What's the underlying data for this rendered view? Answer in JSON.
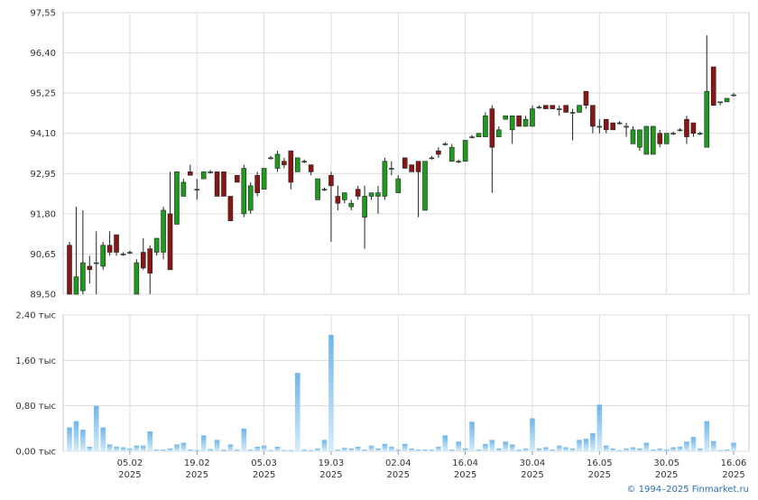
{
  "chart_data": [
    {
      "type": "candlestick",
      "ylim": [
        89.5,
        97.55
      ],
      "yticks": [
        {
          "value": 89.5,
          "label": "89,50"
        },
        {
          "value": 90.65,
          "label": "90,65"
        },
        {
          "value": 91.8,
          "label": "91,80"
        },
        {
          "value": 92.95,
          "label": "92,95"
        },
        {
          "value": 94.1,
          "label": "94,10"
        },
        {
          "value": 95.25,
          "label": "95,25"
        },
        {
          "value": 96.4,
          "label": "96,40"
        },
        {
          "value": 97.55,
          "label": "97,55"
        }
      ],
      "grid": true,
      "up_color": "#1f9a1f",
      "down_color": "#8b1515",
      "open": [
        90.9,
        89.5,
        89.6,
        90.3,
        90.4,
        90.3,
        90.9,
        91.2,
        90.65,
        90.7,
        89.5,
        90.7,
        90.8,
        90.7,
        90.7,
        91.8,
        91.5,
        92.3,
        93.0,
        92.5,
        92.8,
        93.0,
        93.0,
        93.0,
        92.3,
        92.9,
        91.8,
        91.9,
        92.9,
        92.5,
        93.4,
        93.1,
        93.3,
        93.6,
        93.0,
        93.3,
        93.2,
        92.2,
        92.5,
        92.9,
        92.3,
        92.2,
        92.0,
        92.5,
        91.7,
        92.3,
        92.3,
        92.3,
        93.1,
        92.4,
        93.4,
        93.2,
        93.3,
        91.9,
        93.4,
        93.6,
        93.8,
        93.3,
        93.3,
        93.3,
        94.0,
        94.0,
        94.0,
        94.8,
        94.0,
        94.5,
        94.2,
        94.6,
        94.3,
        94.3,
        94.85,
        94.9,
        94.9,
        94.8,
        94.9,
        94.7,
        94.7,
        95.3,
        94.9,
        94.3,
        94.5,
        94.4,
        94.4,
        94.3,
        93.8,
        93.7,
        93.5,
        93.5,
        94.1,
        93.8,
        94.1,
        94.2,
        94.5,
        94.4,
        94.1,
        93.7,
        96.0,
        95.0,
        95.0,
        95.2
      ],
      "high": [
        91.0,
        92.0,
        91.9,
        90.6,
        91.3,
        91.0,
        91.3,
        91.2,
        90.7,
        90.75,
        90.5,
        91.1,
        90.9,
        91.1,
        92.0,
        93.0,
        93.0,
        92.8,
        93.2,
        92.8,
        93.0,
        93.05,
        93.0,
        93.0,
        92.3,
        92.9,
        93.2,
        92.7,
        93.0,
        93.1,
        93.45,
        93.6,
        93.4,
        93.6,
        93.4,
        93.35,
        93.2,
        92.8,
        92.55,
        93.0,
        92.6,
        92.4,
        92.2,
        92.6,
        92.6,
        92.4,
        92.6,
        93.4,
        93.3,
        92.9,
        93.4,
        93.2,
        93.3,
        93.3,
        93.45,
        93.7,
        93.85,
        93.8,
        93.35,
        93.9,
        94.05,
        94.1,
        94.7,
        94.9,
        94.3,
        94.55,
        94.6,
        94.6,
        94.6,
        94.9,
        94.9,
        94.9,
        94.9,
        94.9,
        94.9,
        94.8,
        94.9,
        95.3,
        94.9,
        94.5,
        94.5,
        94.4,
        94.45,
        94.4,
        94.3,
        94.2,
        94.3,
        94.3,
        94.2,
        94.1,
        94.15,
        94.25,
        94.6,
        94.4,
        94.15,
        96.9,
        96.0,
        95.0,
        95.1,
        95.25
      ],
      "low": [
        89.5,
        89.5,
        89.5,
        89.8,
        89.5,
        90.2,
        90.6,
        90.6,
        90.6,
        90.65,
        89.5,
        90.2,
        89.5,
        90.6,
        90.5,
        90.2,
        91.5,
        92.3,
        92.9,
        92.2,
        92.8,
        92.95,
        92.3,
        92.3,
        91.6,
        92.7,
        91.7,
        91.8,
        92.3,
        92.5,
        93.35,
        93.0,
        93.1,
        92.5,
        93.0,
        93.25,
        92.9,
        92.2,
        92.45,
        91.0,
        91.9,
        92.1,
        91.9,
        92.2,
        90.8,
        92.2,
        91.8,
        92.2,
        92.9,
        92.4,
        93.1,
        93.0,
        91.7,
        91.9,
        93.35,
        93.4,
        93.75,
        93.3,
        93.25,
        93.3,
        93.95,
        94.0,
        94.0,
        92.4,
        94.0,
        94.5,
        93.8,
        94.3,
        94.3,
        94.3,
        94.8,
        94.8,
        94.8,
        94.6,
        94.7,
        93.9,
        94.7,
        94.8,
        94.1,
        94.1,
        94.1,
        94.2,
        94.35,
        94.0,
        93.8,
        93.6,
        93.5,
        93.5,
        93.7,
        93.8,
        94.05,
        94.15,
        93.8,
        94.0,
        94.05,
        93.7,
        94.9,
        94.9,
        95.0,
        95.15
      ],
      "close": [
        89.5,
        90.0,
        90.4,
        90.2,
        90.4,
        90.9,
        90.7,
        90.7,
        90.65,
        90.7,
        90.4,
        90.25,
        90.1,
        91.1,
        91.9,
        90.2,
        93.0,
        92.7,
        92.9,
        92.5,
        93.0,
        93.0,
        92.3,
        92.3,
        91.6,
        92.7,
        93.1,
        92.6,
        92.4,
        93.1,
        93.4,
        93.5,
        93.2,
        92.7,
        93.4,
        93.3,
        93.0,
        92.8,
        92.5,
        92.6,
        92.1,
        92.4,
        92.1,
        92.3,
        92.3,
        92.4,
        92.4,
        93.3,
        93.1,
        92.8,
        93.1,
        93.0,
        93.0,
        93.3,
        93.4,
        93.5,
        93.8,
        93.7,
        93.3,
        93.9,
        94.0,
        94.1,
        94.6,
        93.7,
        94.2,
        94.6,
        94.6,
        94.3,
        94.5,
        94.8,
        94.85,
        94.8,
        94.8,
        94.8,
        94.7,
        94.7,
        94.9,
        94.9,
        94.3,
        94.3,
        94.2,
        94.2,
        94.4,
        94.3,
        94.2,
        94.2,
        94.3,
        94.3,
        93.8,
        94.1,
        94.1,
        94.2,
        94.0,
        94.1,
        94.1,
        95.3,
        94.9,
        95.0,
        95.1,
        95.2
      ]
    },
    {
      "type": "bar",
      "color": "#8cc6ee",
      "ylim": [
        0,
        2.4
      ],
      "yticks": [
        {
          "value": 0,
          "label": "0,00 тыс"
        },
        {
          "value": 0.8,
          "label": "0,80 тыс"
        },
        {
          "value": 1.6,
          "label": "1,60 тыс"
        },
        {
          "value": 2.4,
          "label": "2,40 тыс"
        }
      ],
      "grid": true,
      "categories": [
        null,
        null,
        null,
        null,
        null,
        null,
        null,
        null,
        null,
        "05.02 2025",
        null,
        null,
        null,
        null,
        null,
        null,
        null,
        null,
        null,
        "19.02 2025",
        null,
        null,
        null,
        null,
        null,
        null,
        null,
        null,
        null,
        "05.03 2025",
        null,
        null,
        null,
        null,
        null,
        null,
        null,
        null,
        null,
        "19.03 2025",
        null,
        null,
        null,
        null,
        null,
        null,
        null,
        null,
        null,
        "02.04 2025",
        null,
        null,
        null,
        null,
        null,
        null,
        null,
        null,
        null,
        "16.04 2025",
        null,
        null,
        null,
        null,
        null,
        null,
        null,
        null,
        null,
        "30.04 2025",
        null,
        null,
        null,
        null,
        null,
        null,
        null,
        null,
        null,
        "16.05 2025",
        null,
        null,
        null,
        null,
        null,
        null,
        null,
        null,
        null,
        "30.05 2025",
        null,
        null,
        null,
        null,
        null,
        null,
        null,
        null,
        null,
        "16.06 2025"
      ],
      "values": [
        0.42,
        0.53,
        0.38,
        0.08,
        0.8,
        0.42,
        0.12,
        0.08,
        0.07,
        0.05,
        0.1,
        0.1,
        0.35,
        0.03,
        0.03,
        0.05,
        0.12,
        0.15,
        0.03,
        0.02,
        0.28,
        0.04,
        0.2,
        0.03,
        0.12,
        0.03,
        0.4,
        0.03,
        0.08,
        0.1,
        0.02,
        0.08,
        0.02,
        0.02,
        1.38,
        0.03,
        0.02,
        0.05,
        0.2,
        2.05,
        0.03,
        0.06,
        0.05,
        0.08,
        0.03,
        0.1,
        0.05,
        0.13,
        0.08,
        0.03,
        0.13,
        0.05,
        0.03,
        0.03,
        0.03,
        0.08,
        0.28,
        0.03,
        0.17,
        0.05,
        0.52,
        0.03,
        0.13,
        0.2,
        0.05,
        0.17,
        0.12,
        0.03,
        0.05,
        0.58,
        0.05,
        0.07,
        0.03,
        0.1,
        0.07,
        0.05,
        0.2,
        0.22,
        0.32,
        0.82,
        0.1,
        0.05,
        0.02,
        0.05,
        0.07,
        0.05,
        0.15,
        0.03,
        0.05,
        0.03,
        0.07,
        0.08,
        0.17,
        0.25,
        0.05,
        0.53,
        0.18,
        0.02,
        0.03,
        0.15
      ]
    }
  ],
  "footer": "© 1994–2025 Finmarket.ru"
}
